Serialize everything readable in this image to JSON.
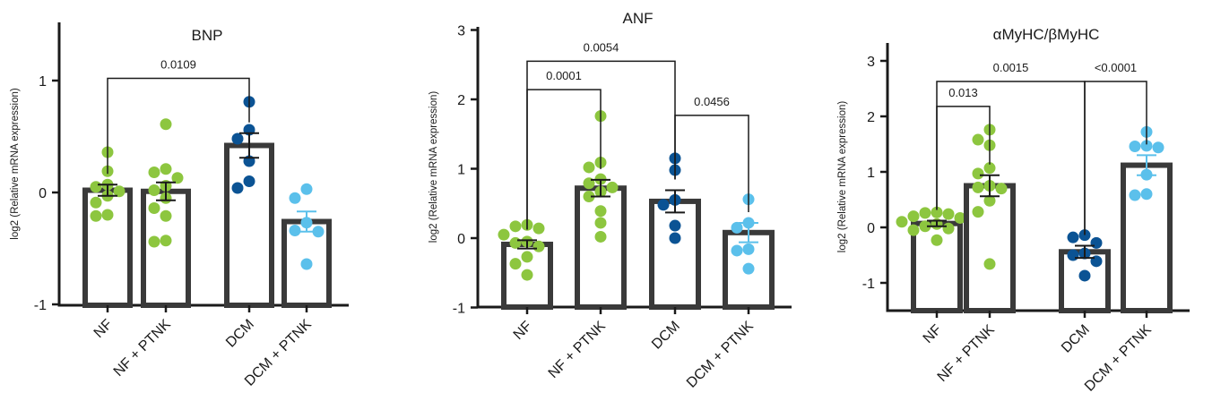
{
  "chart_data": [
    {
      "type": "bar",
      "title": "BNP",
      "ylabel": "log2 (Relative mRNA expression)",
      "categories": [
        "NF",
        "NF + PTNK",
        "DCM",
        "DCM + PTNK"
      ],
      "ylim": [
        -1,
        1.5
      ],
      "yticks": [
        -1,
        0,
        1
      ],
      "tick_labels": [
        "-1",
        "0",
        "1"
      ],
      "colors": [
        "#8dc63f",
        "#8dc63f",
        "#0b5394",
        "#5bc0eb"
      ],
      "values": [
        0.02,
        0.01,
        0.42,
        -0.26
      ],
      "errors": [
        0.05,
        0.08,
        0.11,
        0.09
      ],
      "points": [
        [
          0.36,
          0.19,
          0.07,
          0.05,
          0.01,
          -0.03,
          -0.09,
          -0.2,
          -0.21
        ],
        [
          0.61,
          0.21,
          0.18,
          0.13,
          0.06,
          0.02,
          -0.05,
          -0.14,
          -0.21,
          -0.43,
          -0.44
        ],
        [
          0.81,
          0.56,
          0.48,
          0.28,
          0.1,
          0.04
        ],
        [
          0.03,
          -0.05,
          -0.27,
          -0.34,
          -0.35,
          -0.64
        ]
      ],
      "comparisons": [
        {
          "from": 0,
          "to": 2,
          "label": "0.0109",
          "y": 1.02
        }
      ]
    },
    {
      "type": "bar",
      "title": "ANF",
      "ylabel": "log2 (Relative mRNA expression)",
      "categories": [
        "NF",
        "NF + PTNK",
        "DCM",
        "DCM + PTNK"
      ],
      "ylim": [
        -1,
        3
      ],
      "yticks": [
        -1,
        0,
        1,
        2,
        3
      ],
      "tick_labels": [
        "-1",
        "0",
        "1",
        "2",
        "3"
      ],
      "colors": [
        "#8dc63f",
        "#8dc63f",
        "#0b5394",
        "#5bc0eb"
      ],
      "values": [
        -0.09,
        0.72,
        0.53,
        0.08
      ],
      "errors": [
        0.06,
        0.12,
        0.16,
        0.14
      ],
      "points": [
        [
          0.19,
          0.17,
          0.14,
          0.05,
          -0.05,
          -0.07,
          -0.12,
          -0.27,
          -0.37,
          -0.53
        ],
        [
          1.76,
          1.09,
          1.02,
          0.85,
          0.79,
          0.73,
          0.67,
          0.6,
          0.39,
          0.22,
          0.02
        ],
        [
          1.15,
          0.98,
          0.55,
          0.48,
          0.18,
          0.0
        ],
        [
          0.56,
          0.22,
          0.15,
          -0.16,
          -0.18,
          -0.44
        ]
      ],
      "comparisons": [
        {
          "from": 0,
          "to": 2,
          "label": "0.0054",
          "y": 2.55
        },
        {
          "from": 0,
          "to": 1,
          "label": "0.0001",
          "y": 2.14
        },
        {
          "from": 2,
          "to": 3,
          "label": "0.0456",
          "y": 1.77
        }
      ]
    },
    {
      "type": "bar",
      "title": "αMyHC/βMyHC",
      "ylabel": "log2 (Relative mRNA expression)",
      "categories": [
        "NF",
        "NF + PTNK",
        "DCM",
        "DCM + PTNK"
      ],
      "ylim": [
        -1.5,
        3.5
      ],
      "yticks": [
        -1,
        0,
        1,
        2,
        3
      ],
      "tick_labels": [
        "-1",
        "0",
        "1",
        "2",
        "3"
      ],
      "colors": [
        "#8dc63f",
        "#8dc63f",
        "#0b5394",
        "#5bc0eb"
      ],
      "values": [
        0.07,
        0.75,
        -0.44,
        1.12
      ],
      "errors": [
        0.05,
        0.19,
        0.11,
        0.18
      ],
      "points": [
        [
          0.27,
          0.26,
          0.24,
          0.2,
          0.17,
          0.1,
          0.06,
          0.02,
          -0.02,
          -0.05,
          -0.23
        ],
        [
          1.76,
          1.58,
          1.48,
          1.07,
          0.97,
          0.75,
          0.72,
          0.7,
          0.48,
          0.28,
          -0.66
        ],
        [
          -0.14,
          -0.18,
          -0.28,
          -0.47,
          -0.5,
          -0.61,
          -0.87
        ],
        [
          1.72,
          1.47,
          1.46,
          1.44,
          0.95,
          0.6,
          0.58
        ]
      ],
      "comparisons": [
        {
          "from": 0,
          "to": 2,
          "label": "0.0015",
          "y": 2.63
        },
        {
          "from": 0,
          "to": 1,
          "label": "0.013",
          "y": 2.18
        },
        {
          "from": 2,
          "to": 3,
          "label": "<0.0001",
          "y": 2.63
        }
      ]
    }
  ]
}
